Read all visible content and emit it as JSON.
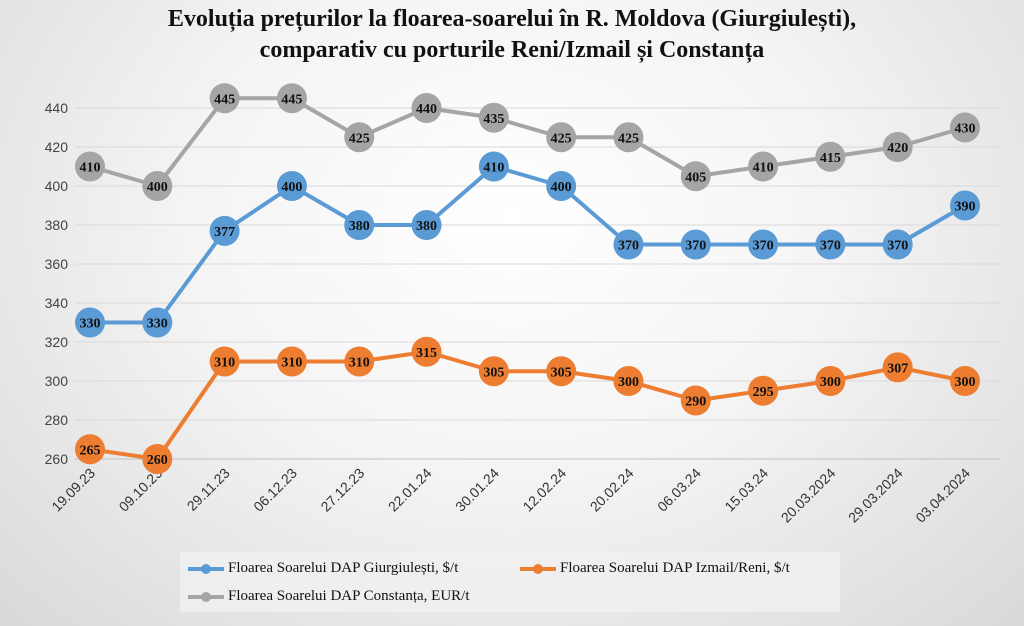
{
  "chart_data": {
    "type": "line",
    "title_line1": "Evoluția prețurilor la floarea-soarelui în R. Moldova (Giurgiulești),",
    "title_line2": "comparativ cu porturile Reni/Izmail și Constanța",
    "categories": [
      "19.09.23",
      "09.10.23",
      "29.11.23",
      "06.12.23",
      "27.12.23",
      "22.01.24",
      "30.01.24",
      "12.02.24",
      "20.02.24",
      "06.03.24",
      "15.03.24",
      "20.03.2024",
      "29.03.2024",
      "03.04.2024"
    ],
    "ylim": [
      260,
      440
    ],
    "yticks": [
      260,
      280,
      300,
      320,
      340,
      360,
      380,
      400,
      420,
      440
    ],
    "grid": true,
    "legend_position": "bottom",
    "series": [
      {
        "name": "Floarea Soarelui DAP Giurgiulești, $/t",
        "color": "#5b9bd5",
        "values": [
          330,
          330,
          377,
          400,
          380,
          380,
          410,
          400,
          370,
          370,
          370,
          370,
          370,
          390
        ]
      },
      {
        "name": "Floarea Soarelui DAP Izmail/Reni, $/t",
        "color": "#ed7d31",
        "values": [
          265,
          260,
          310,
          310,
          310,
          315,
          305,
          305,
          300,
          290,
          295,
          300,
          307,
          300
        ]
      },
      {
        "name": "Floarea Soarelui DAP Constanța, EUR/t",
        "color": "#a5a5a5",
        "values": [
          410,
          400,
          445,
          445,
          425,
          440,
          435,
          425,
          425,
          405,
          410,
          415,
          420,
          430
        ]
      }
    ]
  }
}
